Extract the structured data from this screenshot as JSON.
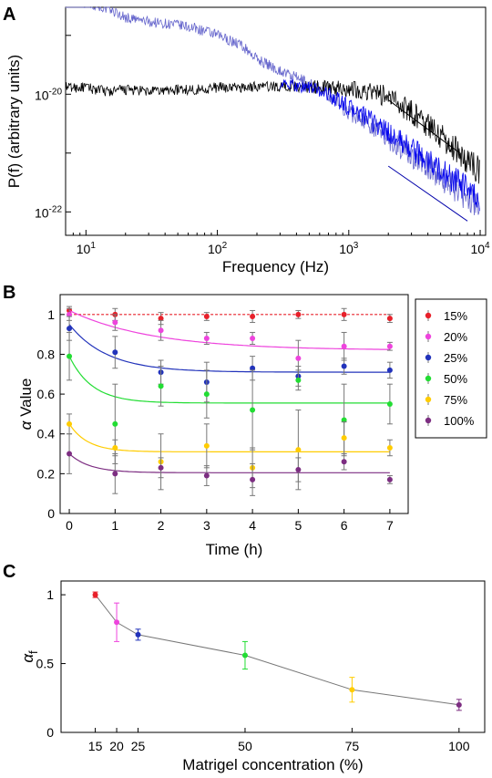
{
  "chart_data": [
    {
      "panel": "A",
      "type": "line",
      "xlabel": "Frequency (Hz)",
      "ylabel": "P(f) (arbitrary units)",
      "xscale": "log",
      "yscale": "log",
      "xlim": [
        7,
        11000
      ],
      "ylim": [
        4e-23,
        3e-19
      ],
      "x_ticks": [
        {
          "value": 10,
          "base": "10",
          "exp": "1"
        },
        {
          "value": 100,
          "base": "10",
          "exp": "2"
        },
        {
          "value": 1000,
          "base": "10",
          "exp": "3"
        },
        {
          "value": 10000,
          "base": "10",
          "exp": "4"
        }
      ],
      "y_ticks": [
        {
          "value": 1e-20,
          "base": "10",
          "exp": "-20"
        },
        {
          "value": 1e-22,
          "base": "10",
          "exp": "-22"
        }
      ],
      "series": [
        {
          "color": "#6666cc",
          "points": [
            [
              7,
              3.6e-19
            ],
            [
              10,
              3.6e-19
            ],
            [
              15,
              2.8e-19
            ],
            [
              20,
              2e-19
            ],
            [
              30,
              1.7e-19
            ],
            [
              50,
              1.5e-19
            ],
            [
              70,
              1.3e-19
            ],
            [
              100,
              1e-19
            ],
            [
              150,
              7e-20
            ],
            [
              200,
              4e-20
            ],
            [
              300,
              2.5e-20
            ],
            [
              500,
              1.5e-20
            ],
            [
              700,
              1e-20
            ],
            [
              1000,
              5e-21
            ],
            [
              1500,
              3e-21
            ],
            [
              2000,
              1.7e-21
            ],
            [
              3000,
              9e-22
            ],
            [
              5000,
              4e-22
            ],
            [
              7000,
              2.2e-22
            ],
            [
              10000,
              1.3e-22
            ]
          ]
        },
        {
          "color": "#000000",
          "points": [
            [
              7,
              1.3e-20
            ],
            [
              10,
              1.3e-20
            ],
            [
              15,
              1.1e-20
            ],
            [
              20,
              1.2e-20
            ],
            [
              30,
              1.1e-20
            ],
            [
              50,
              1.2e-20
            ],
            [
              70,
              1.2e-20
            ],
            [
              100,
              1.3e-20
            ],
            [
              150,
              1.3e-20
            ],
            [
              200,
              1.35e-20
            ],
            [
              300,
              1.35e-20
            ],
            [
              500,
              1.35e-20
            ],
            [
              700,
              1.3e-20
            ],
            [
              1000,
              1.25e-20
            ],
            [
              1500,
              1.1e-20
            ],
            [
              2000,
              9e-21
            ],
            [
              3000,
              5e-21
            ],
            [
              5000,
              2e-21
            ],
            [
              7000,
              1e-21
            ],
            [
              10000,
              5e-22
            ]
          ]
        },
        {
          "color": "#0000ee",
          "points": [
            [
              300,
              1.5e-20
            ],
            [
              500,
              1.3e-20
            ],
            [
              700,
              1e-20
            ],
            [
              1000,
              6e-21
            ],
            [
              1500,
              3.5e-21
            ],
            [
              2000,
              2.2e-21
            ],
            [
              3000,
              1.2e-21
            ],
            [
              5000,
              5e-22
            ],
            [
              7000,
              3e-22
            ],
            [
              10000,
              1.4e-22
            ]
          ]
        }
      ],
      "fit_lines": [
        {
          "color": "#000000",
          "points": [
            [
              2000,
              8e-21
            ],
            [
              7000,
              1e-21
            ]
          ]
        },
        {
          "color": "#0000aa",
          "points": [
            [
              2000,
              6e-22
            ],
            [
              8000,
              7e-23
            ]
          ]
        }
      ]
    },
    {
      "panel": "B",
      "type": "scatter",
      "xlabel": "Time (h)",
      "ylabel_symbol": "α",
      "ylabel_text": "Value",
      "xlim": [
        -0.2,
        7.4
      ],
      "ylim": [
        0,
        1.1
      ],
      "x_ticks": [
        "0",
        "1",
        "2",
        "3",
        "4",
        "5",
        "6",
        "7"
      ],
      "y_ticks": [
        "0",
        "0.2",
        "0.4",
        "0.6",
        "0.8",
        "1"
      ],
      "legend_position": "top-right",
      "series": [
        {
          "name": "15%",
          "color": "#e8202a",
          "fit": {
            "a": 1.0,
            "b": 0.0,
            "k": 1
          },
          "dashed": true,
          "x": [
            0,
            1,
            2,
            3,
            4,
            5,
            6,
            7
          ],
          "y": [
            1.02,
            1.0,
            0.98,
            0.99,
            0.99,
            1.0,
            1.0,
            0.98
          ],
          "err": [
            0.02,
            0.03,
            0.03,
            0.02,
            0.03,
            0.02,
            0.03,
            0.02
          ]
        },
        {
          "name": "20%",
          "color": "#ee44dd",
          "fit": {
            "a": 0.82,
            "b": 0.2,
            "k": 0.55
          },
          "dashed": false,
          "x": [
            0,
            1,
            2,
            3,
            4,
            5,
            6,
            7
          ],
          "y": [
            1.0,
            0.96,
            0.92,
            0.88,
            0.88,
            0.78,
            0.84,
            0.84
          ],
          "err": [
            0.03,
            0.04,
            0.05,
            0.03,
            0.03,
            0.09,
            0.07,
            0.02
          ]
        },
        {
          "name": "25%",
          "color": "#2233bb",
          "fit": {
            "a": 0.71,
            "b": 0.24,
            "k": 1.2
          },
          "dashed": false,
          "x": [
            0,
            1,
            2,
            3,
            4,
            5,
            6,
            7
          ],
          "y": [
            0.93,
            0.81,
            0.71,
            0.66,
            0.73,
            0.69,
            0.74,
            0.72
          ],
          "err": [
            0.06,
            0.08,
            0.06,
            0.1,
            0.06,
            0.05,
            0.04,
            0.04
          ]
        },
        {
          "name": "50%",
          "color": "#22dd33",
          "fit": {
            "a": 0.555,
            "b": 0.235,
            "k": 2.0
          },
          "dashed": false,
          "x": [
            0,
            1,
            2,
            3,
            4,
            5,
            6,
            7
          ],
          "y": [
            0.79,
            0.45,
            0.64,
            0.6,
            0.52,
            0.67,
            0.47,
            0.55
          ],
          "err": [
            0.12,
            0.2,
            0.1,
            0.12,
            0.2,
            0.05,
            0.18,
            0.1
          ]
        },
        {
          "name": "75%",
          "color": "#ffcc00",
          "fit": {
            "a": 0.31,
            "b": 0.14,
            "k": 2.5
          },
          "dashed": false,
          "x": [
            0,
            1,
            2,
            3,
            4,
            5,
            6,
            7
          ],
          "y": [
            0.45,
            0.33,
            0.26,
            0.34,
            0.23,
            0.32,
            0.38,
            0.33
          ],
          "err": [
            0.05,
            0.04,
            0.14,
            0.11,
            0.1,
            0.2,
            0.08,
            0.04
          ]
        },
        {
          "name": "100%",
          "color": "#7d2e82",
          "fit": {
            "a": 0.205,
            "b": 0.095,
            "k": 2.2
          },
          "dashed": false,
          "x": [
            0,
            1,
            2,
            3,
            4,
            5,
            6,
            7
          ],
          "y": [
            0.3,
            0.2,
            0.23,
            0.19,
            0.17,
            0.22,
            0.26,
            0.17
          ],
          "err": [
            0.1,
            0.1,
            0.05,
            0.05,
            0.08,
            0.06,
            0.04,
            0.02
          ]
        }
      ]
    },
    {
      "panel": "C",
      "type": "line",
      "xlabel": "Matrigel concentration (%)",
      "ylabel_symbol": "α",
      "ylabel_sub": "f",
      "xlim": [
        7,
        106
      ],
      "ylim": [
        0,
        1.1
      ],
      "x_ticks": [
        "15",
        "20",
        "25",
        "50",
        "75",
        "100"
      ],
      "x_tick_values": [
        15,
        20,
        25,
        50,
        75,
        100
      ],
      "y_ticks": [
        "0",
        "0.5",
        "1"
      ],
      "y_tick_values": [
        0,
        0.5,
        1
      ],
      "line_color": "#777777",
      "points": [
        {
          "x": 15,
          "y": 1.0,
          "err": 0.02,
          "color": "#e8202a"
        },
        {
          "x": 20,
          "y": 0.8,
          "err": 0.14,
          "color": "#ee44dd"
        },
        {
          "x": 25,
          "y": 0.71,
          "err": 0.04,
          "color": "#2233bb"
        },
        {
          "x": 50,
          "y": 0.56,
          "err": 0.1,
          "color": "#22dd33"
        },
        {
          "x": 75,
          "y": 0.31,
          "err": 0.09,
          "color": "#ffcc00"
        },
        {
          "x": 100,
          "y": 0.2,
          "err": 0.04,
          "color": "#7d2e82"
        }
      ]
    }
  ],
  "labels": {
    "panel_a": "A",
    "panel_b": "B",
    "panel_c": "C"
  }
}
